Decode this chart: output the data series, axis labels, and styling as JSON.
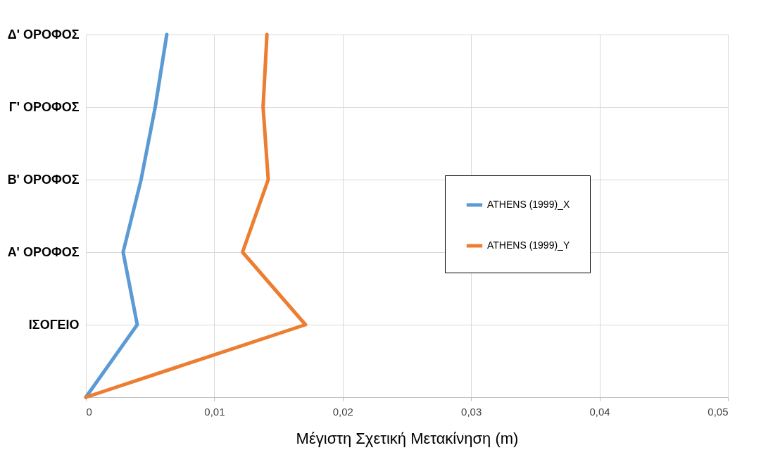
{
  "chart_data": {
    "type": "line",
    "orientation": "horizontal",
    "xlabel": "Μέγιστη Σχετική Μετακίνηση (m)",
    "categories": [
      "Δ' ΟΡΟΦΟΣ",
      "Γ' ΟΡΟΦΟΣ",
      "Β' ΟΡΟΦΟΣ",
      "Α' ΟΡΟΦΟΣ",
      "ΙΣΟΓΕΙΟ",
      null
    ],
    "series": [
      {
        "name": "ATHENS (1999)_X",
        "color": "#5b9bd5",
        "values": [
          0.0063,
          0.0054,
          0.0043,
          0.0029,
          0.004,
          0
        ]
      },
      {
        "name": "ATHENS (1999)_Y",
        "color": "#ed7d31",
        "values": [
          0.0141,
          0.0138,
          0.0142,
          0.0122,
          0.0171,
          0
        ]
      }
    ],
    "xlim": [
      0,
      0.05
    ],
    "xticks": [
      0,
      {
        "value": 0.01,
        "label": "0,01"
      },
      {
        "value": 0.02,
        "label": "0,02"
      },
      {
        "value": 0.03,
        "label": "0,03"
      },
      {
        "value": 0.04,
        "label": "0,04"
      },
      {
        "value": 0.05,
        "label": "0,05"
      }
    ],
    "grid": true,
    "legend": "right",
    "line_style": "solid",
    "marker": "none"
  }
}
